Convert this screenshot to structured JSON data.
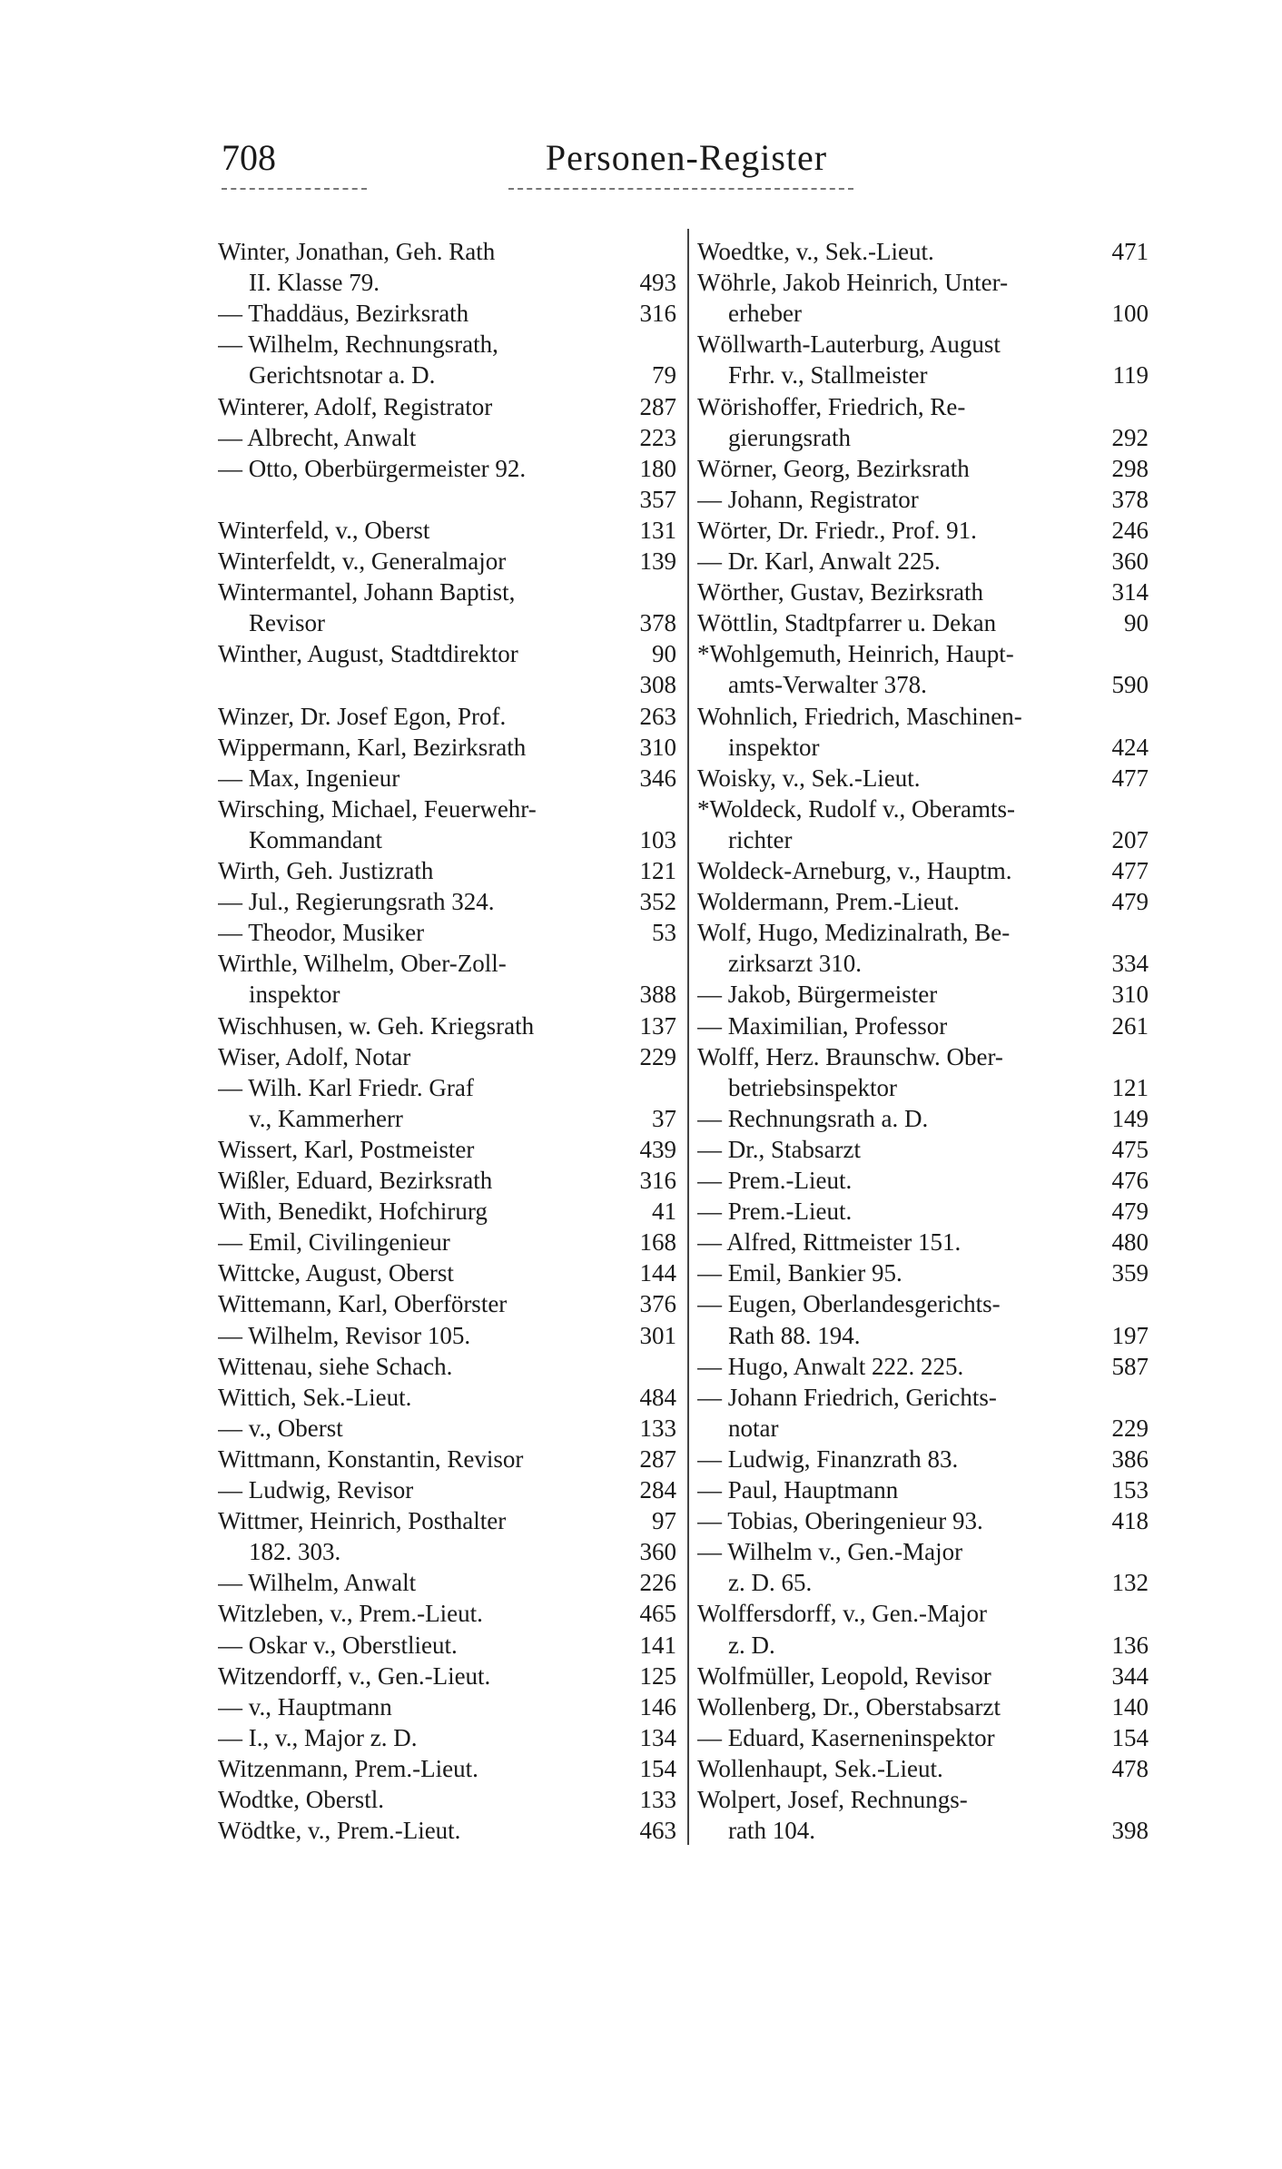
{
  "header": {
    "page_number": "708",
    "title": "Personen-Register"
  },
  "columns": [
    {
      "entries": [
        {
          "rows": [
            {
              "text": "Winter, Jonathan, Geh. Rath"
            },
            {
              "text": "II. Klasse 79.",
              "page": 493
            }
          ]
        },
        {
          "rows": [
            {
              "text": "— Thaddäus, Bezirksrath",
              "page": 316
            }
          ]
        },
        {
          "rows": [
            {
              "text": "— Wilhelm, Rechnungsrath,"
            },
            {
              "text": "Gerichtsnotar a. D.",
              "page": 79
            }
          ]
        },
        {
          "rows": [
            {
              "text": "Winterer, Adolf, Registrator",
              "page": 287
            }
          ]
        },
        {
          "rows": [
            {
              "text": "— Albrecht, Anwalt",
              "page": 223
            }
          ]
        },
        {
          "rows": [
            {
              "text": "— Otto, Oberbürgermeister 92.",
              "page": 180
            },
            {
              "page": 357
            }
          ]
        },
        {
          "rows": [
            {
              "text": "Winterfeld, v., Oberst",
              "page": 131
            }
          ]
        },
        {
          "rows": [
            {
              "text": "Winterfeldt, v., Generalmajor",
              "page": 139
            }
          ]
        },
        {
          "rows": [
            {
              "text": "Wintermantel, Johann Baptist,"
            },
            {
              "text": "Revisor",
              "page": 378
            }
          ]
        },
        {
          "rows": [
            {
              "text": "Winther, August, Stadtdirektor",
              "page": 90
            },
            {
              "page": 308
            }
          ]
        },
        {
          "rows": [
            {
              "text": "Winzer, Dr. Josef Egon, Prof.",
              "page": 263
            }
          ]
        },
        {
          "rows": [
            {
              "text": "Wippermann, Karl, Bezirksrath",
              "page": 310
            }
          ]
        },
        {
          "rows": [
            {
              "text": "— Max, Ingenieur",
              "page": 346
            }
          ]
        },
        {
          "rows": [
            {
              "text": "Wirsching, Michael, Feuerwehr-"
            },
            {
              "text": "Kommandant",
              "page": 103
            }
          ]
        },
        {
          "rows": [
            {
              "text": "Wirth, Geh. Justizrath",
              "page": 121
            }
          ]
        },
        {
          "rows": [
            {
              "text": "— Jul., Regierungsrath 324.",
              "page": 352
            }
          ]
        },
        {
          "rows": [
            {
              "text": "— Theodor, Musiker",
              "page": 53
            }
          ]
        },
        {
          "rows": [
            {
              "text": "Wirthle, Wilhelm, Ober-Zoll-"
            },
            {
              "text": "inspektor",
              "page": 388
            }
          ]
        },
        {
          "rows": [
            {
              "text": "Wischhusen, w. Geh. Kriegsrath",
              "page": 137
            }
          ]
        },
        {
          "rows": [
            {
              "text": "Wiser, Adolf, Notar",
              "page": 229
            }
          ]
        },
        {
          "rows": [
            {
              "text": "— Wilh. Karl Friedr. Graf"
            },
            {
              "text": "v., Kammerherr",
              "page": 37
            }
          ]
        },
        {
          "rows": [
            {
              "text": "Wissert, Karl, Postmeister",
              "page": 439
            }
          ]
        },
        {
          "rows": [
            {
              "text": "Wißler, Eduard, Bezirksrath",
              "page": 316
            }
          ]
        },
        {
          "rows": [
            {
              "text": "With, Benedikt, Hofchirurg",
              "page": 41
            }
          ]
        },
        {
          "rows": [
            {
              "text": "— Emil, Civilingenieur",
              "page": 168
            }
          ]
        },
        {
          "rows": [
            {
              "text": "Wittcke, August, Oberst",
              "page": 144
            }
          ]
        },
        {
          "rows": [
            {
              "text": "Wittemann, Karl, Oberförster",
              "page": 376
            }
          ]
        },
        {
          "rows": [
            {
              "text": "— Wilhelm, Revisor 105.",
              "page": 301
            }
          ]
        },
        {
          "rows": [
            {
              "text": "Wittenau, siehe Schach."
            }
          ]
        },
        {
          "rows": [
            {
              "text": "Wittich, Sek.-Lieut.",
              "page": 484
            }
          ]
        },
        {
          "rows": [
            {
              "text": "— v., Oberst",
              "page": 133
            }
          ]
        },
        {
          "rows": [
            {
              "text": "Wittmann, Konstantin, Revisor",
              "page": 287
            }
          ]
        },
        {
          "rows": [
            {
              "text": "— Ludwig, Revisor",
              "page": 284
            }
          ]
        },
        {
          "rows": [
            {
              "text": "Wittmer, Heinrich, Posthalter",
              "page": 97
            },
            {
              "text": "182. 303.",
              "page": 360
            }
          ]
        },
        {
          "rows": [
            {
              "text": "— Wilhelm, Anwalt",
              "page": 226
            }
          ]
        },
        {
          "rows": [
            {
              "text": "Witzleben, v., Prem.-Lieut.",
              "page": 465
            }
          ]
        },
        {
          "rows": [
            {
              "text": "— Oskar v., Oberstlieut.",
              "page": 141
            }
          ]
        },
        {
          "rows": [
            {
              "text": "Witzendorff, v., Gen.-Lieut.",
              "page": 125
            }
          ]
        },
        {
          "rows": [
            {
              "text": "— v., Hauptmann",
              "page": 146
            }
          ]
        },
        {
          "rows": [
            {
              "text": "— I., v., Major z. D.",
              "page": 134
            }
          ]
        },
        {
          "rows": [
            {
              "text": "Witzenmann, Prem.-Lieut.",
              "page": 154
            }
          ]
        },
        {
          "rows": [
            {
              "text": "Wodtke, Oberstl.",
              "page": 133
            }
          ]
        },
        {
          "rows": [
            {
              "text": "Wödtke, v., Prem.-Lieut.",
              "page": 463
            }
          ]
        }
      ]
    },
    {
      "entries": [
        {
          "rows": [
            {
              "text": "Woedtke, v., Sek.-Lieut.",
              "page": 471
            }
          ]
        },
        {
          "rows": [
            {
              "text": "Wöhrle, Jakob Heinrich, Unter-"
            },
            {
              "text": "erheber",
              "page": 100
            }
          ]
        },
        {
          "rows": [
            {
              "text": "Wöllwarth-Lauterburg, August"
            },
            {
              "text": "Frhr. v., Stallmeister",
              "page": 119
            }
          ]
        },
        {
          "rows": [
            {
              "text": "Wörishoffer, Friedrich, Re-"
            },
            {
              "text": "gierungsrath",
              "page": 292
            }
          ]
        },
        {
          "rows": [
            {
              "text": "Wörner, Georg, Bezirksrath",
              "page": 298
            }
          ]
        },
        {
          "rows": [
            {
              "text": "— Johann, Registrator",
              "page": 378
            }
          ]
        },
        {
          "rows": [
            {
              "text": "Wörter, Dr. Friedr., Prof. 91.",
              "page": 246
            }
          ]
        },
        {
          "rows": [
            {
              "text": "— Dr. Karl, Anwalt 225.",
              "page": 360
            }
          ]
        },
        {
          "rows": [
            {
              "text": "Wörther, Gustav, Bezirksrath",
              "page": 314
            }
          ]
        },
        {
          "rows": [
            {
              "text": "Wöttlin, Stadtpfarrer u. Dekan",
              "page": 90
            }
          ]
        },
        {
          "rows": [
            {
              "text": "*Wohlgemuth, Heinrich, Haupt-"
            },
            {
              "text": "amts-Verwalter 378.",
              "page": 590
            }
          ]
        },
        {
          "rows": [
            {
              "text": "Wohnlich, Friedrich, Maschinen-"
            },
            {
              "text": "inspektor",
              "page": 424
            }
          ]
        },
        {
          "rows": [
            {
              "text": "Woisky, v., Sek.-Lieut.",
              "page": 477
            }
          ]
        },
        {
          "rows": [
            {
              "text": "*Woldeck, Rudolf v., Oberamts-"
            },
            {
              "text": "richter",
              "page": 207
            }
          ]
        },
        {
          "rows": [
            {
              "text": "Woldeck-Arneburg, v., Hauptm.",
              "page": 477
            }
          ]
        },
        {
          "rows": [
            {
              "text": "Woldermann, Prem.-Lieut.",
              "page": 479
            }
          ]
        },
        {
          "rows": [
            {
              "text": "Wolf, Hugo, Medizinalrath, Be-"
            },
            {
              "text": "zirksarzt 310.",
              "page": 334
            }
          ]
        },
        {
          "rows": [
            {
              "text": "— Jakob, Bürgermeister",
              "page": 310
            }
          ]
        },
        {
          "rows": [
            {
              "text": "— Maximilian, Professor",
              "page": 261
            }
          ]
        },
        {
          "rows": [
            {
              "text": "Wolff, Herz. Braunschw. Ober-"
            },
            {
              "text": "betriebsinspektor",
              "page": 121
            }
          ]
        },
        {
          "rows": [
            {
              "text": "— Rechnungsrath a. D.",
              "page": 149
            }
          ]
        },
        {
          "rows": [
            {
              "text": "— Dr., Stabsarzt",
              "page": 475
            }
          ]
        },
        {
          "rows": [
            {
              "text": "— Prem.-Lieut.",
              "page": 476
            }
          ]
        },
        {
          "rows": [
            {
              "text": "— Prem.-Lieut.",
              "page": 479
            }
          ]
        },
        {
          "rows": [
            {
              "text": "— Alfred, Rittmeister 151.",
              "page": 480
            }
          ]
        },
        {
          "rows": [
            {
              "text": "— Emil, Bankier 95.",
              "page": 359
            }
          ]
        },
        {
          "rows": [
            {
              "text": "— Eugen, Oberlandesgerichts-"
            },
            {
              "text": "Rath 88. 194.",
              "page": 197
            }
          ]
        },
        {
          "rows": [
            {
              "text": "— Hugo, Anwalt 222. 225.",
              "page": 587
            }
          ]
        },
        {
          "rows": [
            {
              "text": "— Johann Friedrich, Gerichts-"
            },
            {
              "text": "notar",
              "page": 229
            }
          ]
        },
        {
          "rows": [
            {
              "text": "— Ludwig, Finanzrath 83.",
              "page": 386
            }
          ]
        },
        {
          "rows": [
            {
              "text": "— Paul, Hauptmann",
              "page": 153
            }
          ]
        },
        {
          "rows": [
            {
              "text": "— Tobias, Oberingenieur 93.",
              "page": 418
            }
          ]
        },
        {
          "rows": [
            {
              "text": "— Wilhelm v., Gen.-Major"
            },
            {
              "text": "z. D. 65.",
              "page": 132
            }
          ]
        },
        {
          "rows": [
            {
              "text": "Wolffersdorff, v., Gen.-Major"
            },
            {
              "text": "z. D.",
              "page": 136
            }
          ]
        },
        {
          "rows": [
            {
              "text": "Wolfmüller, Leopold, Revisor",
              "page": 344
            }
          ]
        },
        {
          "rows": [
            {
              "text": "Wollenberg, Dr., Oberstabsarzt",
              "page": 140
            }
          ]
        },
        {
          "rows": [
            {
              "text": "— Eduard, Kaserneninspektor",
              "page": 154
            }
          ]
        },
        {
          "rows": [
            {
              "text": "Wollenhaupt, Sek.-Lieut.",
              "page": 478
            }
          ]
        },
        {
          "rows": [
            {
              "text": "Wolpert, Josef, Rechnungs-"
            },
            {
              "text": "rath 104.",
              "page": 398
            }
          ]
        }
      ]
    }
  ]
}
